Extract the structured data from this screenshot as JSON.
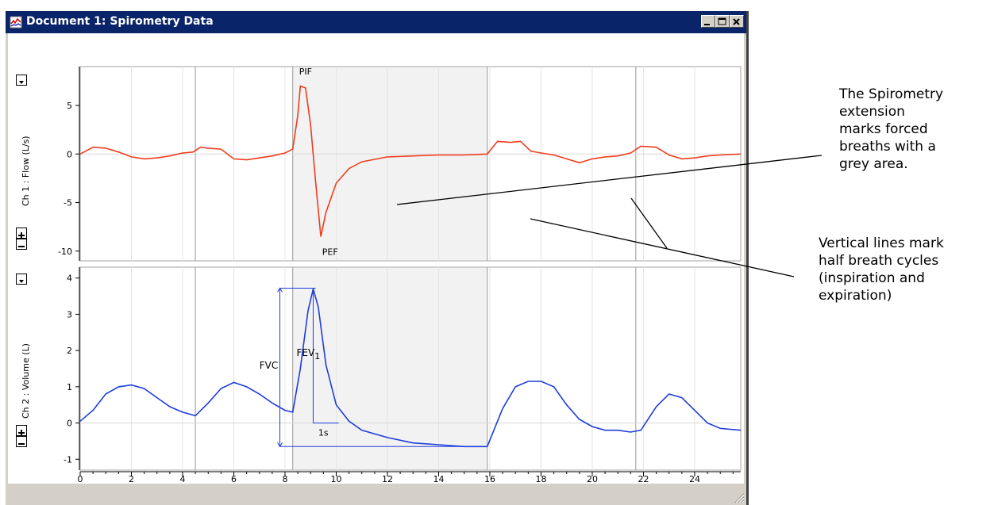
{
  "window": {
    "title": "Document 1: Spirometry Data"
  },
  "charts": {
    "ch1": {
      "label": "Ch 1 : Flow (L/s)",
      "color": "#f03c1e",
      "y_ticks": [
        "5",
        "0",
        "-5",
        "-10"
      ],
      "peak_labels": {
        "pif": "PIF",
        "pef": "PEF"
      }
    },
    "ch2": {
      "label": "Ch 2 : Volume (L)",
      "color": "#1e3cdc",
      "y_ticks": [
        "4",
        "3",
        "2",
        "1",
        "0",
        "-1"
      ],
      "labels": {
        "fvc": "FVC",
        "fev": "FEV",
        "fev_sub": "1",
        "one_s": "1s"
      }
    },
    "x_ticks": [
      "0",
      "2",
      "4",
      "6",
      "8",
      "10",
      "12",
      "14",
      "16",
      "18",
      "20",
      "22",
      "24"
    ]
  },
  "chart_data": [
    {
      "type": "line",
      "ylabel": "Ch 1 : Flow (L/s)",
      "xlim": [
        0,
        25.8
      ],
      "ylim": [
        -11,
        9
      ],
      "shaded_region": [
        8.3,
        15.9
      ],
      "vertical_markers": [
        4.5,
        8.3,
        15.9,
        21.7
      ],
      "grid": true,
      "series": [
        {
          "x": [
            0,
            0.5,
            1,
            1.5,
            2,
            2.5,
            3,
            3.5,
            4,
            4.4,
            4.7,
            5,
            5.5,
            6,
            6.5,
            7,
            7.5,
            8,
            8.3,
            8.5,
            8.6,
            8.8,
            9.0,
            9.2,
            9.4,
            9.6,
            10,
            10.5,
            11,
            12,
            13,
            14,
            15,
            15.9,
            16.3,
            16.8,
            17.2,
            17.6,
            18,
            18.5,
            19,
            19.5,
            20,
            20.5,
            21,
            21.5,
            21.9,
            22.5,
            23,
            23.5,
            24,
            24.5,
            25,
            25.8
          ],
          "y": [
            0,
            0.7,
            0.6,
            0.2,
            -0.3,
            -0.5,
            -0.4,
            -0.2,
            0.1,
            0.2,
            0.7,
            0.6,
            0.5,
            -0.5,
            -0.6,
            -0.4,
            -0.2,
            0.1,
            0.5,
            4,
            7,
            6.8,
            3,
            -3,
            -8.5,
            -6,
            -3,
            -1.5,
            -0.8,
            -0.3,
            -0.2,
            -0.1,
            -0.1,
            0,
            1.3,
            1.2,
            1.3,
            0.3,
            0.1,
            -0.1,
            -0.5,
            -0.9,
            -0.5,
            -0.3,
            -0.2,
            0.1,
            0.8,
            0.7,
            -0.1,
            -0.5,
            -0.4,
            -0.2,
            -0.1,
            0
          ],
          "color": "#f03c1e"
        }
      ]
    },
    {
      "type": "line",
      "ylabel": "Ch 2 : Volume (L)",
      "xlabel": "",
      "xlim": [
        0,
        25.8
      ],
      "ylim": [
        -1.3,
        4.3
      ],
      "shaded_region": [
        8.3,
        15.9
      ],
      "vertical_markers": [
        4.5,
        8.3,
        15.9,
        21.7
      ],
      "grid": true,
      "series": [
        {
          "x": [
            0,
            0.5,
            1,
            1.5,
            2,
            2.5,
            3,
            3.5,
            4,
            4.5,
            5,
            5.5,
            6,
            6.5,
            7,
            7.5,
            8,
            8.3,
            8.6,
            8.9,
            9.1,
            9.3,
            9.6,
            10,
            10.5,
            11,
            12,
            13,
            14,
            15,
            15.9,
            16.5,
            17,
            17.5,
            18,
            18.5,
            19,
            19.5,
            20,
            20.5,
            21,
            21.5,
            21.9,
            22.5,
            23,
            23.5,
            24,
            24.5,
            25,
            25.8
          ],
          "y": [
            0.05,
            0.35,
            0.8,
            1.0,
            1.05,
            0.95,
            0.7,
            0.45,
            0.3,
            0.2,
            0.55,
            0.95,
            1.12,
            1.0,
            0.8,
            0.55,
            0.35,
            0.3,
            1.5,
            3.1,
            3.7,
            3.2,
            1.6,
            0.5,
            0.05,
            -0.2,
            -0.4,
            -0.55,
            -0.6,
            -0.65,
            -0.65,
            0.4,
            1.0,
            1.15,
            1.15,
            1.0,
            0.5,
            0.1,
            -0.1,
            -0.2,
            -0.2,
            -0.25,
            -0.2,
            0.45,
            0.8,
            0.7,
            0.35,
            0.0,
            -0.15,
            -0.2
          ],
          "color": "#1e3cdc"
        }
      ],
      "annotations": [
        "FVC",
        "FEV1",
        "1s"
      ]
    }
  ],
  "annotations": {
    "callout1": [
      "The Spirometry",
      "extension",
      "marks forced",
      "breaths with a",
      "grey area."
    ],
    "callout2": [
      "Vertical lines mark",
      "half breath cycles",
      "(inspiration and",
      "expiration)"
    ]
  }
}
